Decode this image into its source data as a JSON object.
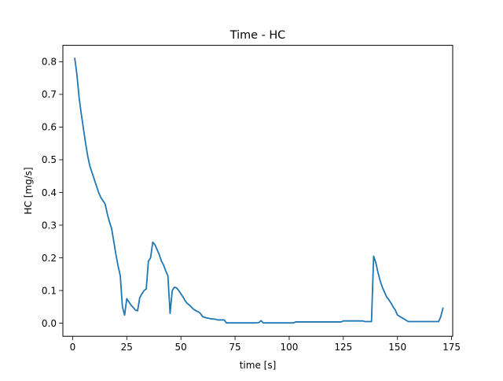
{
  "chart_data": {
    "type": "line",
    "title": "Time - HC",
    "xlabel": "time [s]",
    "ylabel": "HC [mg/s]",
    "xlim": [
      -4.5,
      175.5
    ],
    "ylim": [
      -0.04,
      0.85
    ],
    "xticks": [
      0,
      25,
      50,
      75,
      100,
      125,
      150,
      175
    ],
    "yticks": [
      0.0,
      0.1,
      0.2,
      0.3,
      0.4,
      0.5,
      0.6,
      0.7,
      0.8
    ],
    "xtick_labels": [
      "0",
      "25",
      "50",
      "75",
      "100",
      "125",
      "150",
      "175"
    ],
    "ytick_labels": [
      "0.0",
      "0.1",
      "0.2",
      "0.3",
      "0.4",
      "0.5",
      "0.6",
      "0.7",
      "0.8"
    ],
    "grid": false,
    "series": [
      {
        "color": "#1f77b4",
        "x": [
          1,
          2,
          3,
          4,
          5,
          6,
          7,
          8,
          9,
          10,
          11,
          12,
          13,
          14,
          15,
          16,
          17,
          18,
          19,
          20,
          21,
          22,
          23,
          24,
          25,
          26,
          27,
          28,
          29,
          30,
          31,
          32,
          33,
          34,
          35,
          36,
          37,
          38,
          39,
          40,
          41,
          42,
          43,
          44,
          45,
          46,
          47,
          48,
          49,
          50,
          51,
          52,
          53,
          54,
          55,
          56,
          57,
          58,
          59,
          60,
          61,
          62,
          63,
          64,
          65,
          66,
          67,
          68,
          69,
          70,
          71,
          72,
          73,
          74,
          75,
          80,
          85,
          86,
          87,
          88,
          90,
          95,
          100,
          102,
          103,
          110,
          115,
          120,
          124,
          125,
          130,
          134,
          135,
          136,
          137,
          138,
          139,
          140,
          141,
          142,
          143,
          144,
          145,
          146,
          147,
          148,
          149,
          150,
          155,
          160,
          165,
          169,
          170,
          171
        ],
        "y": [
          0.81,
          0.76,
          0.69,
          0.64,
          0.595,
          0.55,
          0.51,
          0.48,
          0.46,
          0.44,
          0.42,
          0.4,
          0.385,
          0.375,
          0.365,
          0.335,
          0.31,
          0.29,
          0.25,
          0.21,
          0.175,
          0.145,
          0.05,
          0.025,
          0.075,
          0.065,
          0.055,
          0.048,
          0.04,
          0.038,
          0.078,
          0.09,
          0.1,
          0.105,
          0.19,
          0.2,
          0.248,
          0.24,
          0.225,
          0.21,
          0.19,
          0.178,
          0.16,
          0.145,
          0.03,
          0.1,
          0.11,
          0.108,
          0.1,
          0.09,
          0.08,
          0.068,
          0.06,
          0.055,
          0.048,
          0.042,
          0.038,
          0.035,
          0.03,
          0.02,
          0.018,
          0.016,
          0.015,
          0.013,
          0.013,
          0.012,
          0.01,
          0.01,
          0.01,
          0.01,
          0.001,
          0.001,
          0.001,
          0.001,
          0.001,
          0.001,
          0.001,
          0.002,
          0.008,
          0.001,
          0.001,
          0.001,
          0.001,
          0.001,
          0.004,
          0.004,
          0.004,
          0.004,
          0.004,
          0.007,
          0.007,
          0.007,
          0.005,
          0.005,
          0.005,
          0.005,
          0.205,
          0.185,
          0.155,
          0.13,
          0.11,
          0.095,
          0.08,
          0.072,
          0.062,
          0.05,
          0.04,
          0.025,
          0.005,
          0.005,
          0.005,
          0.005,
          0.02,
          0.046
        ]
      }
    ]
  }
}
